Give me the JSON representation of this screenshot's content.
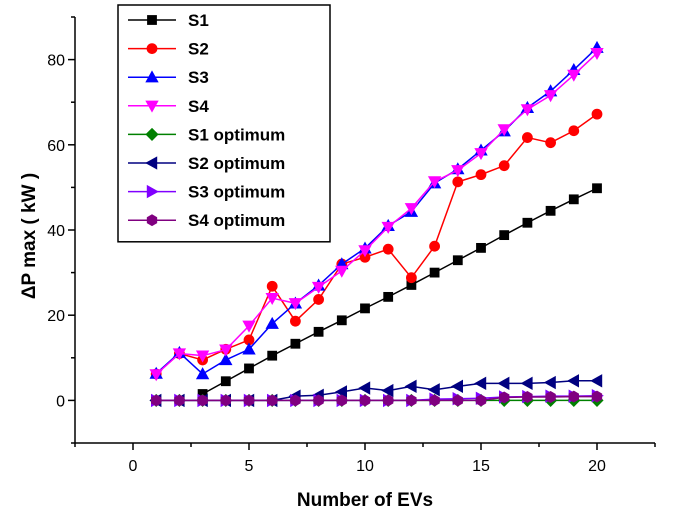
{
  "chart_data": {
    "type": "line",
    "title": "",
    "xlabel": "Number of EVs",
    "ylabel": "ΔP max ( kW )",
    "xlim": [
      -2.5,
      22.5
    ],
    "ylim": [
      -10,
      90
    ],
    "x_ticks": [
      0,
      5,
      10,
      15,
      20
    ],
    "x_tick_labels": [
      "0",
      "5",
      "10",
      "15",
      "20"
    ],
    "y_ticks": [
      0,
      20,
      40,
      60,
      80
    ],
    "y_tick_labels": [
      "0",
      "20",
      "40",
      "60",
      "80"
    ],
    "legend_position": "top-left",
    "grid": false,
    "x": [
      1,
      2,
      3,
      4,
      5,
      6,
      7,
      8,
      9,
      10,
      11,
      12,
      13,
      14,
      15,
      16,
      17,
      18,
      19,
      20
    ],
    "series": [
      {
        "name": "S1",
        "color": "#000000",
        "marker": "square",
        "values": [
          null,
          null,
          1.5,
          4.5,
          7.5,
          10.5,
          13.3,
          16.1,
          18.8,
          21.6,
          24.3,
          27.1,
          30.0,
          32.9,
          35.8,
          38.8,
          41.7,
          44.5,
          47.2,
          49.8
        ]
      },
      {
        "name": "S2",
        "color": "#ff0000",
        "marker": "circle",
        "values": [
          6.2,
          11.0,
          9.5,
          12.0,
          14.2,
          26.8,
          18.6,
          23.7,
          32.0,
          33.6,
          35.5,
          28.8,
          36.2,
          51.3,
          53.0,
          55.1,
          61.7,
          60.5,
          63.3,
          67.2
        ]
      },
      {
        "name": "S3",
        "color": "#0000ff",
        "marker": "triangle-up",
        "values": [
          6.3,
          11.2,
          6.2,
          9.5,
          12.0,
          18.0,
          22.8,
          27.0,
          32.0,
          35.7,
          41.0,
          44.3,
          51.0,
          54.3,
          58.7,
          63.2,
          68.7,
          72.6,
          77.6,
          82.8
        ]
      },
      {
        "name": "S4",
        "color": "#ff00ff",
        "marker": "triangle-down",
        "values": [
          6.1,
          11.0,
          10.5,
          11.9,
          17.5,
          24.0,
          22.8,
          26.6,
          30.4,
          35.2,
          40.7,
          45.1,
          51.4,
          54.0,
          58.0,
          63.6,
          68.3,
          71.6,
          76.4,
          81.5
        ]
      },
      {
        "name": "S1 optimum",
        "color": "#008000",
        "marker": "diamond",
        "values": [
          0,
          0,
          0,
          0,
          0,
          0,
          0,
          0,
          0,
          0,
          0,
          0,
          0,
          0,
          0,
          0,
          0,
          0,
          0,
          0
        ]
      },
      {
        "name": "S2 optimum",
        "color": "#000080",
        "marker": "triangle-left",
        "values": [
          0,
          0,
          0,
          0,
          0,
          0,
          1.0,
          1.2,
          2.0,
          2.9,
          2.3,
          3.3,
          2.5,
          3.3,
          4.0,
          4.0,
          4.0,
          4.2,
          4.6,
          4.6
        ]
      },
      {
        "name": "S3 optimum",
        "color": "#8000ff",
        "marker": "triangle-right",
        "values": [
          0,
          0,
          0,
          0,
          0,
          0,
          0,
          0,
          0,
          0,
          0,
          0,
          0.3,
          0.4,
          0.5,
          0.8,
          0.9,
          1.0,
          1.0,
          1.1
        ]
      },
      {
        "name": "S4 optimum",
        "color": "#800080",
        "marker": "hexagon",
        "values": [
          0,
          0,
          0,
          0,
          0,
          0,
          0,
          0,
          0,
          0,
          0,
          0,
          0,
          0,
          0,
          0.7,
          0.8,
          0.8,
          0.9,
          0.9
        ]
      }
    ]
  }
}
